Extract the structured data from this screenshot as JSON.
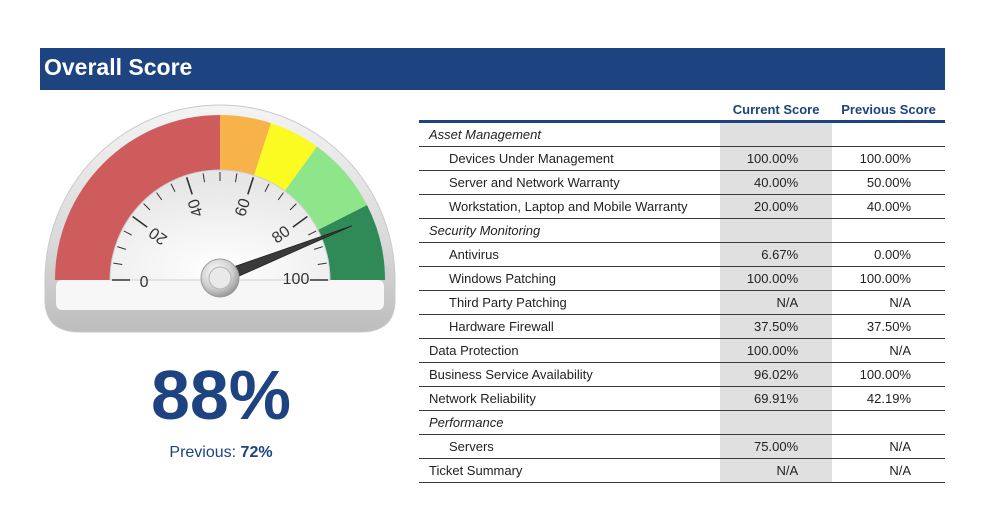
{
  "header": {
    "title": "Overall Score"
  },
  "gauge": {
    "value": 88,
    "min": 0,
    "max": 100,
    "tick_labels": [
      "0",
      "20",
      "40",
      "60",
      "80",
      "100"
    ],
    "bands": [
      {
        "from": 0,
        "to": 50,
        "color": "#cf5c5c"
      },
      {
        "from": 50,
        "to": 60,
        "color": "#f7b34a"
      },
      {
        "from": 60,
        "to": 70,
        "color": "#fbfb22"
      },
      {
        "from": 70,
        "to": 85,
        "color": "#8fe68a"
      },
      {
        "from": 85,
        "to": 100,
        "color": "#2f8a57"
      }
    ]
  },
  "summary": {
    "score": "88%",
    "previous_label": "Previous: ",
    "previous_value": "72%"
  },
  "table": {
    "headers": {
      "label": "",
      "current": "Current Score",
      "previous": "Previous Score"
    },
    "rows": [
      {
        "label": "Asset Management",
        "current": "",
        "previous": "",
        "style": "section"
      },
      {
        "label": "Devices Under Management",
        "current": "100.00%",
        "previous": "100.00%",
        "style": "indent"
      },
      {
        "label": "Server and Network Warranty",
        "current": "40.00%",
        "previous": "50.00%",
        "style": "indent"
      },
      {
        "label": "Workstation, Laptop and Mobile Warranty",
        "current": "20.00%",
        "previous": "40.00%",
        "style": "indent"
      },
      {
        "label": "Security Monitoring",
        "current": "",
        "previous": "",
        "style": "section"
      },
      {
        "label": "Antivirus",
        "current": "6.67%",
        "previous": "0.00%",
        "style": "indent"
      },
      {
        "label": "Windows Patching",
        "current": "100.00%",
        "previous": "100.00%",
        "style": "indent"
      },
      {
        "label": "Third Party Patching",
        "current": "N/A",
        "previous": "N/A",
        "style": "indent"
      },
      {
        "label": "Hardware Firewall",
        "current": "37.50%",
        "previous": "37.50%",
        "style": "indent"
      },
      {
        "label": "Data Protection",
        "current": "100.00%",
        "previous": "N/A",
        "style": "top"
      },
      {
        "label": "Business Service Availability",
        "current": "96.02%",
        "previous": "100.00%",
        "style": "top"
      },
      {
        "label": "Network Reliability",
        "current": "69.91%",
        "previous": "42.19%",
        "style": "top"
      },
      {
        "label": "Performance",
        "current": "",
        "previous": "",
        "style": "section"
      },
      {
        "label": "Servers",
        "current": "75.00%",
        "previous": "N/A",
        "style": "indent"
      },
      {
        "label": "Ticket Summary",
        "current": "N/A",
        "previous": "N/A",
        "style": "top"
      }
    ]
  }
}
